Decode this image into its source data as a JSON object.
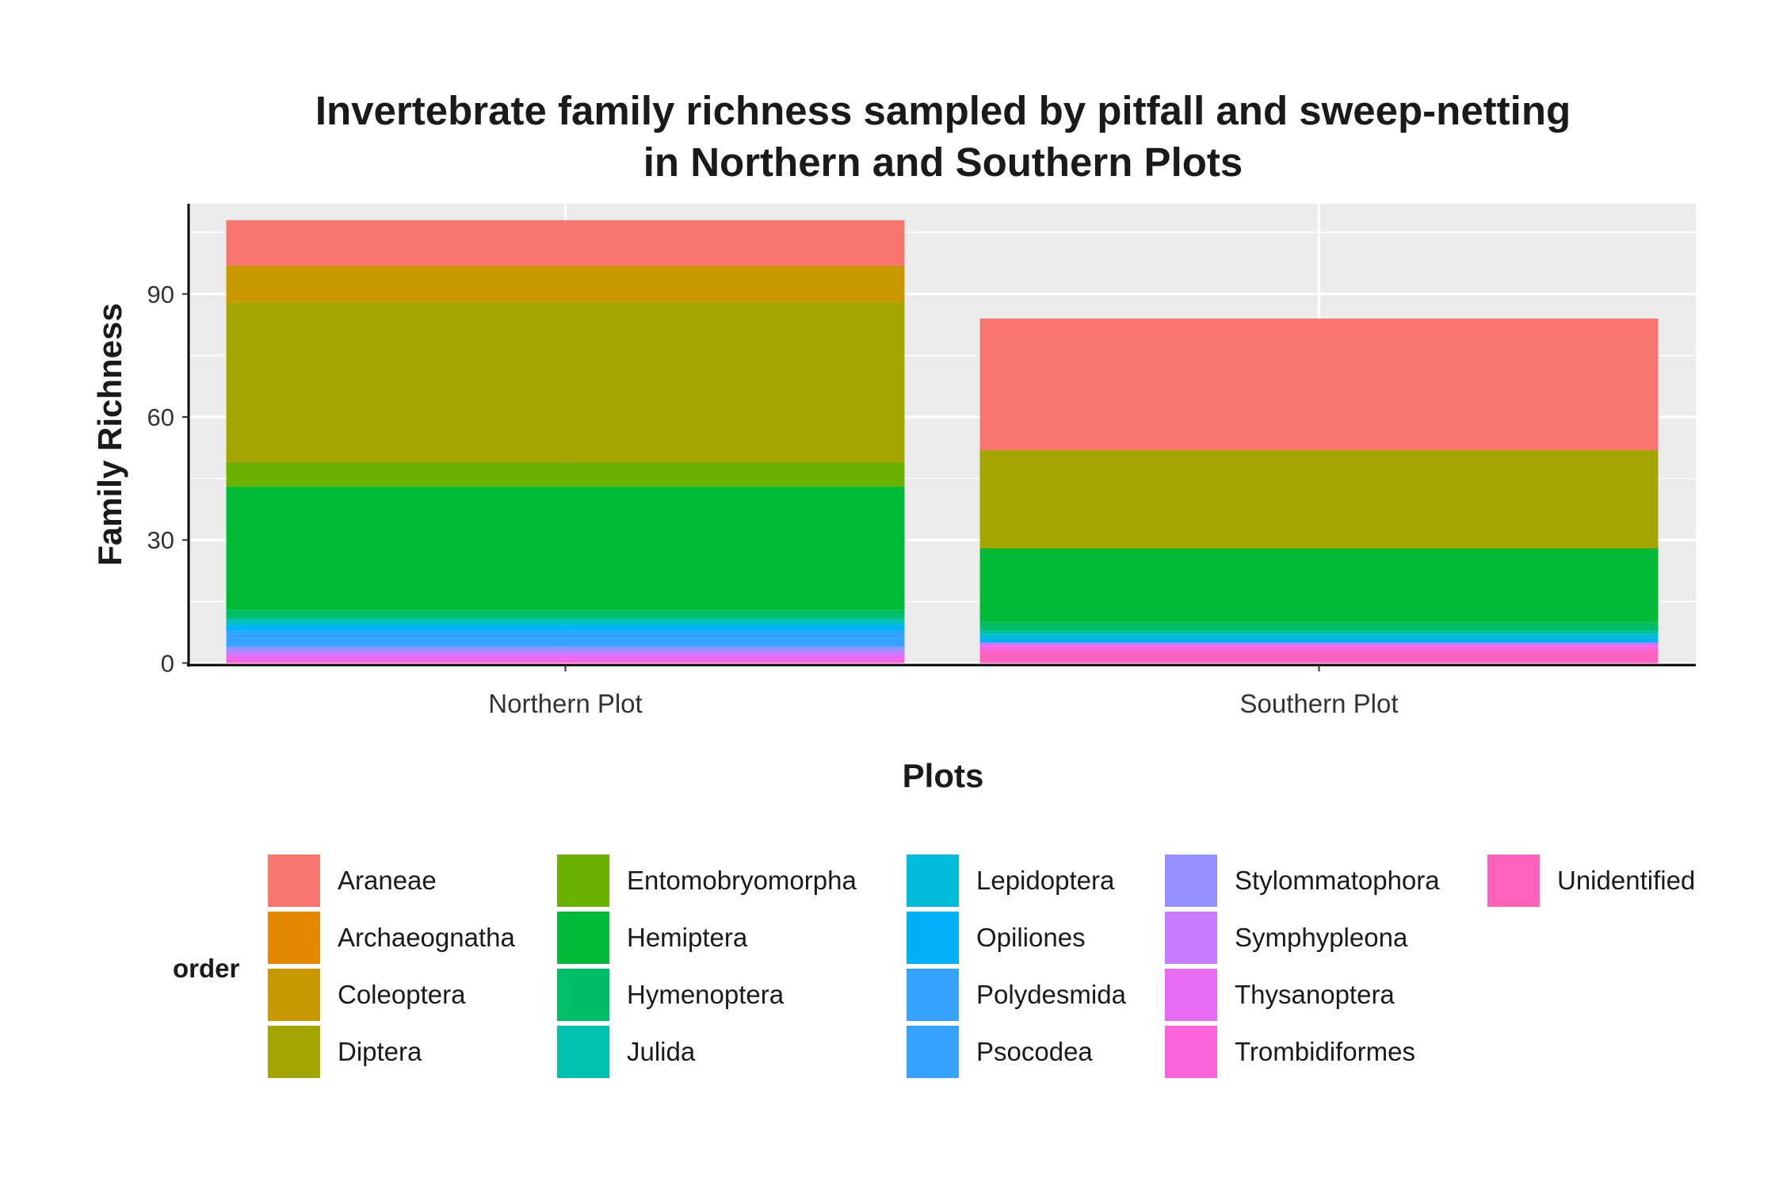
{
  "chart_data": {
    "type": "bar",
    "stacked": true,
    "title": "Invertebrate family richness sampled by pitfall and sweep-netting\nin Northern and Southern Plots",
    "xlabel": "Plots",
    "ylabel": "Family Richness",
    "ylim": [
      -0.5,
      112
    ],
    "yticks": [
      0,
      30,
      60,
      90
    ],
    "grid": true,
    "legend_title": "order",
    "legend_position": "bottom",
    "categories": [
      "Northern Plot",
      "Southern Plot"
    ],
    "series": [
      {
        "name": "Araneae",
        "color": "#F8766D",
        "values": [
          11,
          32
        ]
      },
      {
        "name": "Archaeognatha",
        "color": "#E58700",
        "values": [
          0,
          0
        ]
      },
      {
        "name": "Coleoptera",
        "color": "#C99800",
        "values": [
          9,
          0
        ]
      },
      {
        "name": "Diptera",
        "color": "#A3A500",
        "values": [
          39,
          24
        ]
      },
      {
        "name": "Entomobryomorpha",
        "color": "#6BB100",
        "values": [
          6,
          0
        ]
      },
      {
        "name": "Hemiptera",
        "color": "#00BA38",
        "values": [
          30,
          18
        ]
      },
      {
        "name": "Hymenoptera",
        "color": "#00BE67",
        "values": [
          2,
          2
        ]
      },
      {
        "name": "Julida",
        "color": "#00C0AF",
        "values": [
          1,
          1
        ]
      },
      {
        "name": "Lepidoptera",
        "color": "#00BCD8",
        "values": [
          1,
          1
        ]
      },
      {
        "name": "Opiliones",
        "color": "#00B0F6",
        "values": [
          1,
          1
        ]
      },
      {
        "name": "Polydesmida",
        "color": "#35A2FF",
        "values": [
          2,
          0
        ]
      },
      {
        "name": "Psocodea",
        "color": "#35A2FF",
        "values": [
          2,
          0
        ]
      },
      {
        "name": "Stylommatophora",
        "color": "#9590FF",
        "values": [
          1,
          0
        ]
      },
      {
        "name": "Symphypleona",
        "color": "#C77CFF",
        "values": [
          1,
          0
        ]
      },
      {
        "name": "Thysanoptera",
        "color": "#E76BF3",
        "values": [
          1,
          1
        ]
      },
      {
        "name": "Trombidiformes",
        "color": "#FA62DB",
        "values": [
          1,
          1
        ]
      },
      {
        "name": "Unidentified",
        "color": "#FF62BC",
        "values": [
          0,
          3
        ]
      }
    ]
  },
  "legend": {
    "swatch_colors": [
      "#F8766D",
      "#E58700",
      "#C99800",
      "#A3A500",
      "#6BB100",
      "#00BA38",
      "#00BE67",
      "#00C0AF",
      "#00BCD8",
      "#00B0F6",
      "#35A2FF",
      "#35A2FF",
      "#9590FF",
      "#C77CFF",
      "#E76BF3",
      "#FA62DB",
      "#FF62BC"
    ]
  }
}
